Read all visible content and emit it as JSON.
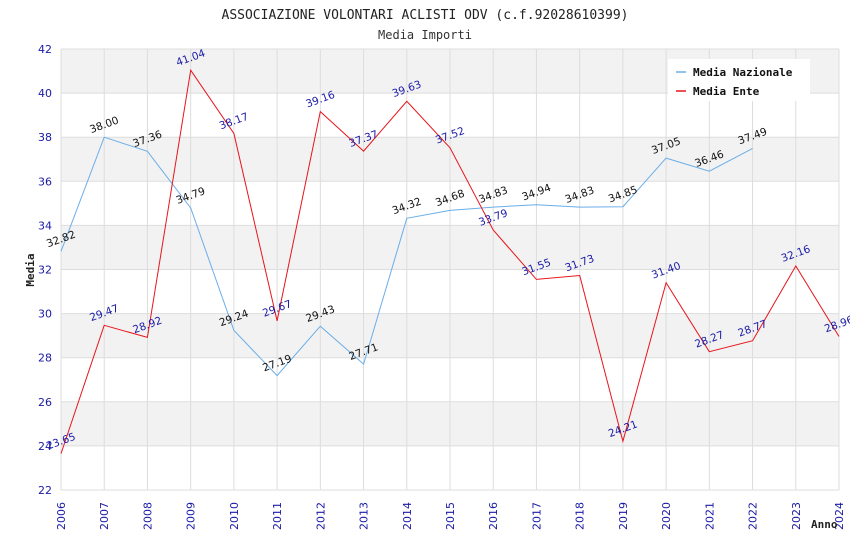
{
  "chart_data": {
    "type": "line",
    "title": "ASSOCIAZIONE VOLONTARI ACLISTI ODV (c.f.92028610399)",
    "subtitle": "Media Importi",
    "xlabel": "Anno",
    "ylabel": "Media",
    "ylim": [
      22,
      42
    ],
    "yticks": [
      22,
      24,
      26,
      28,
      30,
      32,
      34,
      36,
      38,
      40,
      42
    ],
    "x": [
      2006,
      2007,
      2008,
      2009,
      2010,
      2011,
      2012,
      2013,
      2014,
      2015,
      2016,
      2017,
      2018,
      2019,
      2020,
      2021,
      2022,
      2023,
      2024
    ],
    "grid": true,
    "legend_position": "top-right",
    "series": [
      {
        "name": "Media Nazionale",
        "color": "#6aaee8",
        "label_color": "#111111",
        "values": [
          32.82,
          38.0,
          37.36,
          34.79,
          29.24,
          27.19,
          29.43,
          27.71,
          34.32,
          34.68,
          34.83,
          34.94,
          34.83,
          34.85,
          37.05,
          36.46,
          37.49,
          null,
          null
        ],
        "labels": [
          "32.82",
          "38.00",
          "37.36",
          "34.79",
          "29.24",
          "27.19",
          "29.43",
          "27.71",
          "34.32",
          "34.68",
          "34.83",
          "34.94",
          "34.83",
          "34.85",
          "37.05",
          "36.46",
          "37.49",
          null,
          null
        ]
      },
      {
        "name": "Media Ente",
        "color": "#e8141b",
        "label_color": "#1a1aa6",
        "values": [
          23.65,
          29.47,
          28.92,
          41.04,
          38.17,
          29.67,
          39.16,
          37.37,
          39.63,
          37.52,
          33.79,
          31.55,
          31.73,
          24.21,
          31.4,
          28.27,
          28.77,
          32.16,
          28.96
        ],
        "labels": [
          "23.65",
          "29.47",
          "28.92",
          "41.04",
          "38.17",
          "29.67",
          "39.16",
          "37.37",
          "39.63",
          "37.52",
          "33.79",
          "31.55",
          "31.73",
          "24.21",
          "31.40",
          "28.27",
          "28.77",
          "32.16",
          "28.96"
        ]
      }
    ]
  }
}
